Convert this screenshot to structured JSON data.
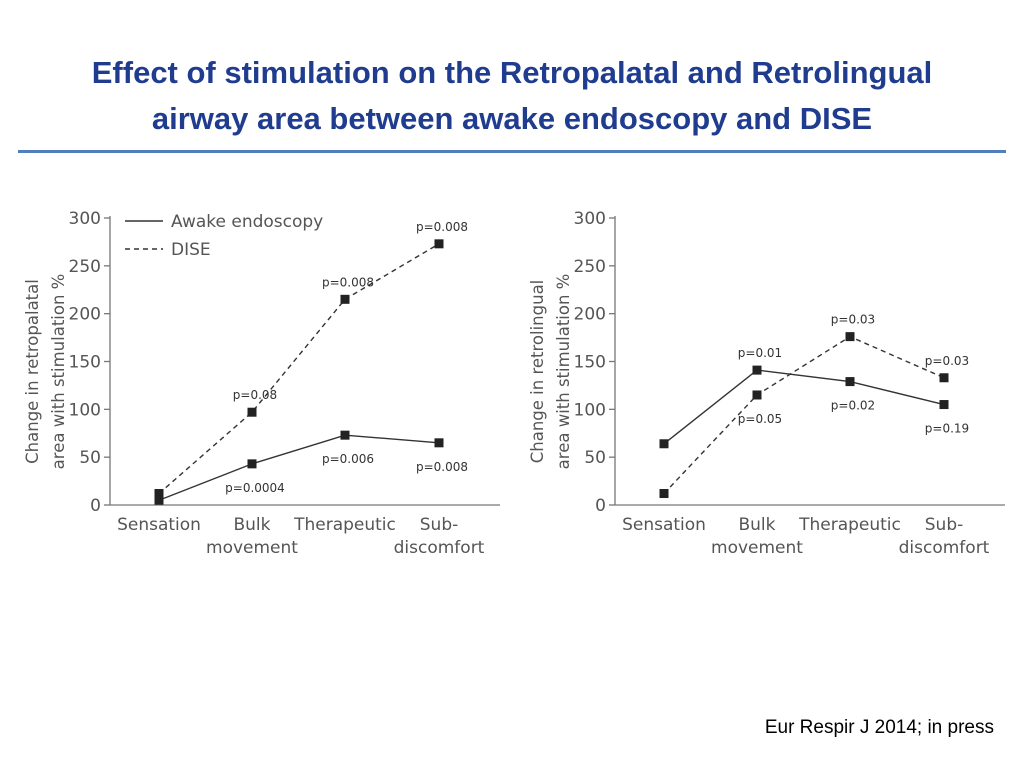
{
  "slide": {
    "title_line1": "Effect of stimulation on the Retropalatal and Retrolingual",
    "title_line2": "airway area between awake endoscopy and DISE",
    "citation": "Eur Respir J 2014; in press"
  },
  "colors": {
    "title": "#1f3c8f",
    "rule": "#4f7fbd",
    "series": "#333333",
    "axis": "#777777"
  },
  "chart_data": [
    {
      "type": "line",
      "ylabel_lines": [
        "Change in retropalatal",
        "area with stimulation %"
      ],
      "categories": [
        [
          "Sensation"
        ],
        [
          "Bulk",
          "movement"
        ],
        [
          "Therapeutic"
        ],
        [
          "Sub-",
          "discomfort"
        ]
      ],
      "yticks": [
        0,
        50,
        100,
        150,
        200,
        250,
        300
      ],
      "ytick_labels": [
        "0",
        "50",
        "100",
        "150",
        "200",
        "250",
        "300"
      ],
      "ylim": [
        0,
        300
      ],
      "legend": {
        "position": "top-left",
        "entries": [
          "Awake endoscopy",
          "DISE"
        ]
      },
      "series": [
        {
          "name": "Awake endoscopy",
          "style": "solid",
          "values": [
            5,
            43,
            73,
            65
          ],
          "p_labels": [
            null,
            "p=0.0004",
            "p=0.006",
            "p=0.008"
          ],
          "label_side": [
            null,
            "below",
            "below",
            "below"
          ]
        },
        {
          "name": "DISE",
          "style": "dashed",
          "values": [
            12,
            97,
            215,
            273
          ],
          "p_labels": [
            null,
            "p=0.08",
            "p=0.008",
            "p=0.008"
          ],
          "label_side": [
            null,
            "above",
            "above",
            "above"
          ]
        }
      ]
    },
    {
      "type": "line",
      "ylabel_lines": [
        "Change in retrolingual",
        "area with stimulation %"
      ],
      "categories": [
        [
          "Sensation"
        ],
        [
          "Bulk",
          "movement"
        ],
        [
          "Therapeutic"
        ],
        [
          "Sub-",
          "discomfort"
        ]
      ],
      "yticks": [
        0,
        50,
        100,
        150,
        200,
        250,
        300
      ],
      "ytick_labels": [
        "0",
        "50",
        "100",
        "150",
        "200",
        "250",
        "300"
      ],
      "ylim": [
        0,
        300
      ],
      "series": [
        {
          "name": "Awake endoscopy",
          "style": "solid",
          "values": [
            64,
            141,
            129,
            105
          ],
          "p_labels": [
            null,
            "p=0.01",
            "p=0.02",
            "p=0.19"
          ],
          "label_side": [
            null,
            "above",
            "below",
            "below"
          ]
        },
        {
          "name": "DISE",
          "style": "dashed",
          "values": [
            12,
            115,
            176,
            133
          ],
          "p_labels": [
            null,
            "p=0.05",
            "p=0.03",
            "p=0.03"
          ],
          "label_side": [
            null,
            "below",
            "above",
            "above"
          ]
        }
      ]
    }
  ]
}
